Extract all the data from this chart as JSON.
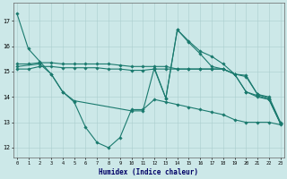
{
  "bg_color": "#cce8e8",
  "line_color": "#1a7a6e",
  "xlabel": "Humidex (Indice chaleur)",
  "xlim": [
    -0.3,
    23.3
  ],
  "ylim": [
    11.6,
    17.7
  ],
  "yticks": [
    12,
    13,
    14,
    15,
    16,
    17
  ],
  "lines": [
    {
      "x": [
        0,
        1,
        2,
        3,
        4,
        5,
        6,
        7,
        8,
        9,
        10,
        11,
        12,
        13,
        14,
        15,
        16,
        17,
        18,
        19,
        20,
        21,
        22,
        23
      ],
      "y": [
        17.3,
        15.9,
        15.4,
        14.9,
        14.2,
        13.8,
        12.8,
        12.2,
        12.0,
        12.4,
        13.5,
        13.5,
        13.9,
        13.8,
        13.7,
        13.6,
        13.5,
        13.4,
        13.3,
        13.1,
        13.0,
        13.0,
        13.0,
        12.9
      ]
    },
    {
      "x": [
        0,
        1,
        2,
        3,
        4,
        5,
        6,
        7,
        8,
        9,
        10,
        11,
        12,
        13,
        14,
        15,
        16,
        17,
        18,
        19,
        20,
        21,
        22,
        23
      ],
      "y": [
        15.3,
        15.3,
        15.35,
        15.35,
        15.3,
        15.3,
        15.3,
        15.3,
        15.3,
        15.25,
        15.2,
        15.2,
        15.2,
        15.2,
        15.1,
        15.1,
        15.1,
        15.1,
        15.1,
        14.9,
        14.8,
        14.1,
        14.0,
        13.0
      ]
    },
    {
      "x": [
        0,
        1,
        2,
        3,
        4,
        5,
        6,
        7,
        8,
        9,
        10,
        11,
        12,
        13,
        14,
        15,
        16,
        17,
        18,
        19,
        20,
        21,
        22,
        23
      ],
      "y": [
        15.1,
        15.1,
        15.2,
        15.2,
        15.15,
        15.15,
        15.15,
        15.15,
        15.1,
        15.1,
        15.05,
        15.05,
        15.1,
        15.1,
        15.1,
        15.1,
        15.1,
        15.1,
        15.1,
        14.9,
        14.85,
        14.1,
        13.95,
        12.95
      ]
    },
    {
      "x": [
        0,
        2,
        3,
        4,
        5,
        10,
        11,
        12,
        13,
        14,
        15,
        16,
        17,
        18,
        19,
        20,
        21,
        22,
        23
      ],
      "y": [
        15.2,
        15.3,
        14.9,
        14.2,
        13.85,
        13.45,
        13.45,
        15.15,
        13.95,
        16.65,
        16.2,
        15.8,
        15.6,
        15.3,
        14.9,
        14.2,
        14.0,
        13.9,
        12.95
      ]
    },
    {
      "x": [
        12,
        13,
        14,
        15,
        16,
        17,
        18,
        19,
        20,
        21,
        22,
        23
      ],
      "y": [
        15.1,
        13.95,
        16.65,
        16.15,
        15.7,
        15.2,
        15.1,
        14.9,
        14.2,
        14.05,
        13.9,
        12.95
      ]
    }
  ]
}
